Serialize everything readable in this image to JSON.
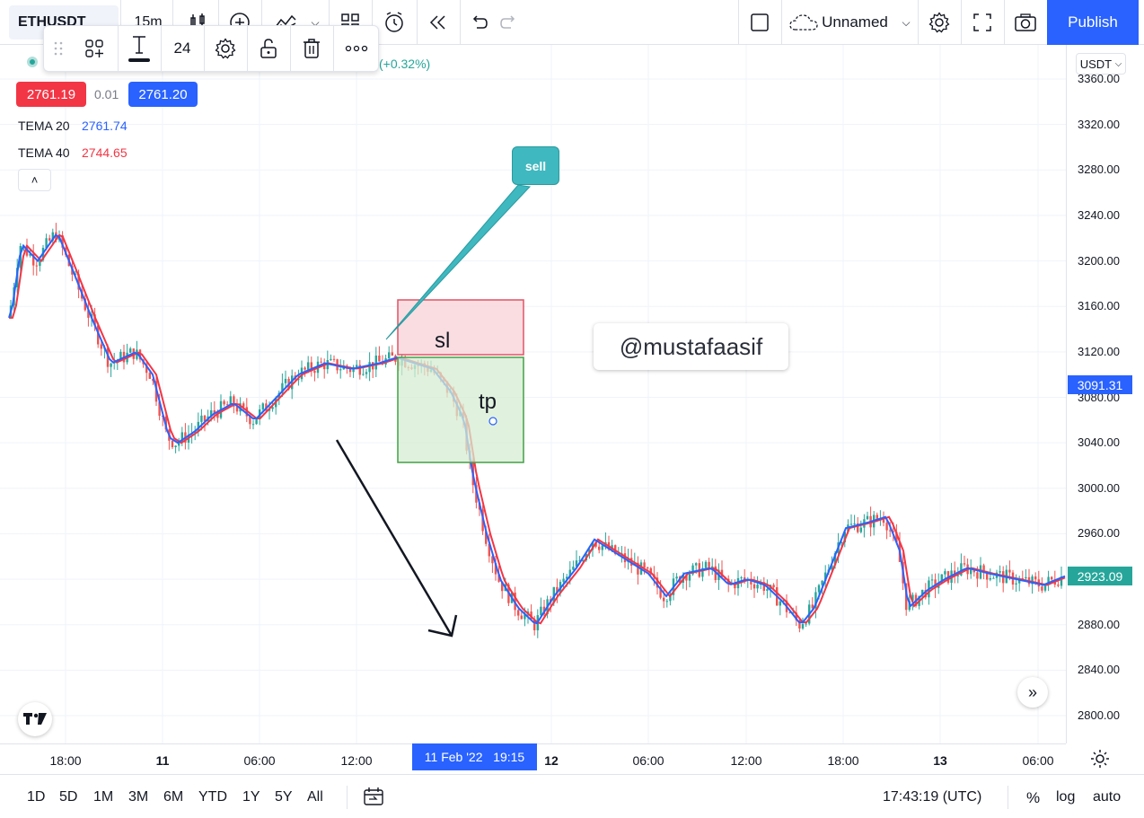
{
  "topbar": {
    "symbol": "ETHUSDT",
    "interval": "15m",
    "layout_name": "Unnamed",
    "publish_label": "Publish",
    "icons": [
      "candles-icon",
      "add-indicator-icon",
      "indicators-icon",
      "chevron-down-icon",
      "layout-grid-icon",
      "alert-icon",
      "replay-icon",
      "undo-icon",
      "redo-icon",
      "square-icon",
      "cloud-icon",
      "chevron-down-icon",
      "settings-icon",
      "fullscreen-icon",
      "camera-icon"
    ]
  },
  "drawing_toolbar": {
    "font_size": "24",
    "icons": [
      "drag-handle-icon",
      "template-icon",
      "text-color-icon",
      "settings-icon",
      "lock-icon",
      "trash-icon",
      "more-icon"
    ]
  },
  "legend": {
    "change": "(+0.32%)",
    "sell_price": "2761.19",
    "spread": "0.01",
    "buy_price": "2761.20",
    "indicators": [
      {
        "name": "TEMA 20",
        "value": "2761.74",
        "color": "#2962ff"
      },
      {
        "name": "TEMA 40",
        "value": "2744.65",
        "color": "#f23645"
      }
    ]
  },
  "annotations": {
    "callout": "sell",
    "stop_loss_label": "sl",
    "take_profit_label": "tp",
    "watermark": "@mustafaasif"
  },
  "price_axis": {
    "currency": "USDT",
    "ticks": [
      "3360.00",
      "3320.00",
      "3280.00",
      "3240.00",
      "3200.00",
      "3160.00",
      "3120.00",
      "3080.00",
      "3040.00",
      "3000.00",
      "2960.00",
      "2920.00",
      "2880.00",
      "2840.00",
      "2800.00"
    ],
    "tick_values": [
      3360,
      3320,
      3280,
      3240,
      3200,
      3160,
      3120,
      3080,
      3040,
      3000,
      2960,
      2920,
      2880,
      2840,
      2800
    ],
    "crosshair_label": "3091.31",
    "crosshair_value": 3091.31,
    "last_price_label": "2923.09",
    "last_price_value": 2923.09
  },
  "time_axis": {
    "ticks": [
      "18:00",
      "11",
      "06:00",
      "12:00",
      "12",
      "06:00",
      "12:00",
      "18:00",
      "13",
      "06:00"
    ],
    "cursor_date": "11 Feb '22",
    "cursor_time": "19:15"
  },
  "bottombar": {
    "ranges": [
      "1D",
      "5D",
      "1M",
      "3M",
      "6M",
      "YTD",
      "1Y",
      "5Y",
      "All"
    ],
    "clock": "17:43:19 (UTC)",
    "percent_label": "%",
    "log_label": "log",
    "auto_label": "auto"
  },
  "colors": {
    "up": "#26a69a",
    "down": "#ef5350",
    "tema20": "#2962ff",
    "tema40": "#f23645",
    "stop_loss_fill": "#f8d7dc",
    "take_profit_fill": "#d6ecd2",
    "accent": "#2962ff"
  }
}
